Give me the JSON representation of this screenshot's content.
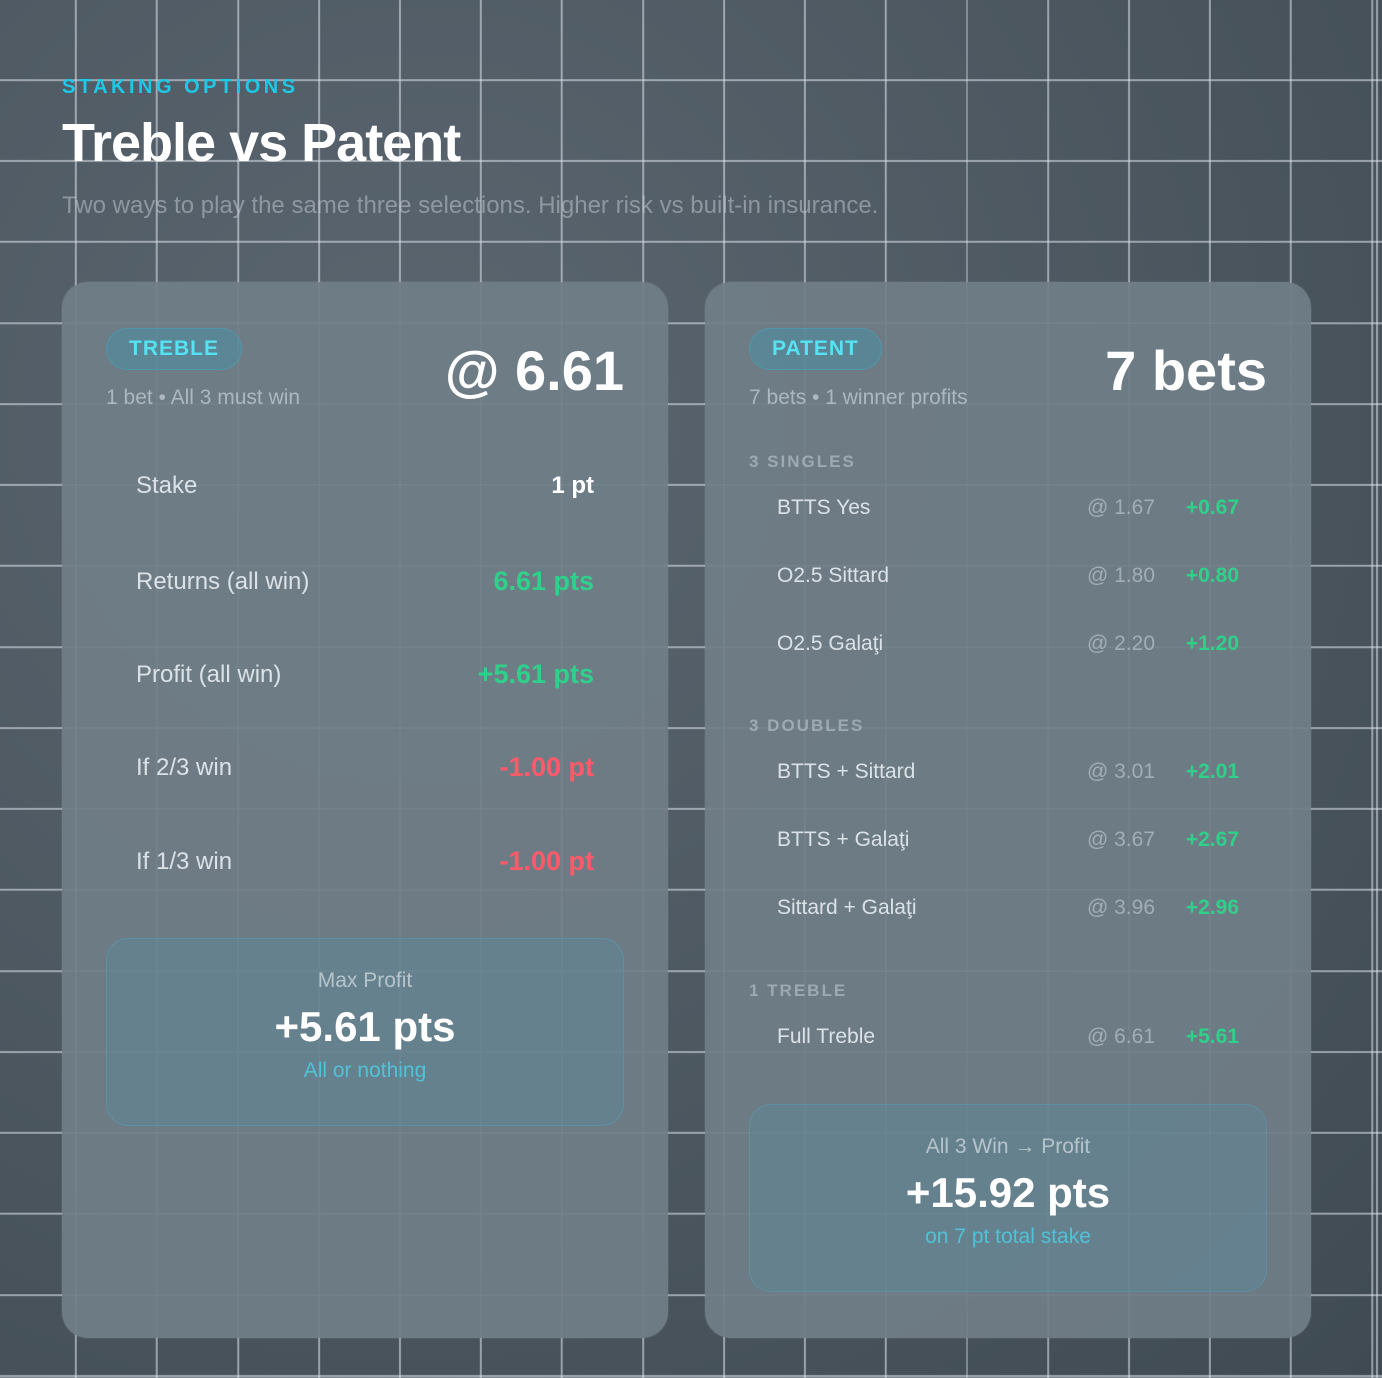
{
  "header": {
    "eyebrow": "STAKING OPTIONS",
    "title": "Treble vs Patent",
    "subtitle": "Two ways to play the same three selections. Higher risk vs built-in insurance."
  },
  "treble": {
    "badge": "TREBLE",
    "subtitle": "1 bet • All 3 must win",
    "headline": "@ 6.61",
    "rows": [
      {
        "label": "Stake",
        "value": "1 pt"
      },
      {
        "label": "Returns (all win)",
        "value": "6.61 pts"
      },
      {
        "label": "Profit (all win)",
        "value": "+5.61 pts"
      },
      {
        "label": "If 2/3 win",
        "value": "-1.00 pt"
      },
      {
        "label": "If 1/3 win",
        "value": "-1.00 pt"
      }
    ],
    "summary": {
      "label": "Max Profit",
      "value": "+5.61 pts",
      "note": "All or nothing"
    }
  },
  "patent": {
    "badge": "PATENT",
    "subtitle": "7 bets • 1 winner profits",
    "headline": "7 bets",
    "sections": [
      {
        "title": "3 SINGLES",
        "bets": [
          {
            "name": "BTTS Yes",
            "odds": "@ 1.67",
            "profit": "+0.67"
          },
          {
            "name": "O2.5 Sittard",
            "odds": "@ 1.80",
            "profit": "+0.80"
          },
          {
            "name": "O2.5 Galaţi",
            "odds": "@ 2.20",
            "profit": "+1.20"
          }
        ]
      },
      {
        "title": "3 DOUBLES",
        "bets": [
          {
            "name": "BTTS + Sittard",
            "odds": "@ 3.01",
            "profit": "+2.01"
          },
          {
            "name": "BTTS + Galaţi",
            "odds": "@ 3.67",
            "profit": "+2.67"
          },
          {
            "name": "Sittard + Galaţi",
            "odds": "@ 3.96",
            "profit": "+2.96"
          }
        ]
      },
      {
        "title": "1 TREBLE",
        "bets": [
          {
            "name": "Full Treble",
            "odds": "@ 6.61",
            "profit": "+5.61"
          }
        ]
      }
    ],
    "summary": {
      "label": "All 3 Win → Profit",
      "value": "+15.92 pts",
      "note": "on 7 pt total stake"
    }
  },
  "colors": {
    "accent": "#1fc8e6",
    "positive": "#2fd08a",
    "negative": "#ff5a6a"
  }
}
